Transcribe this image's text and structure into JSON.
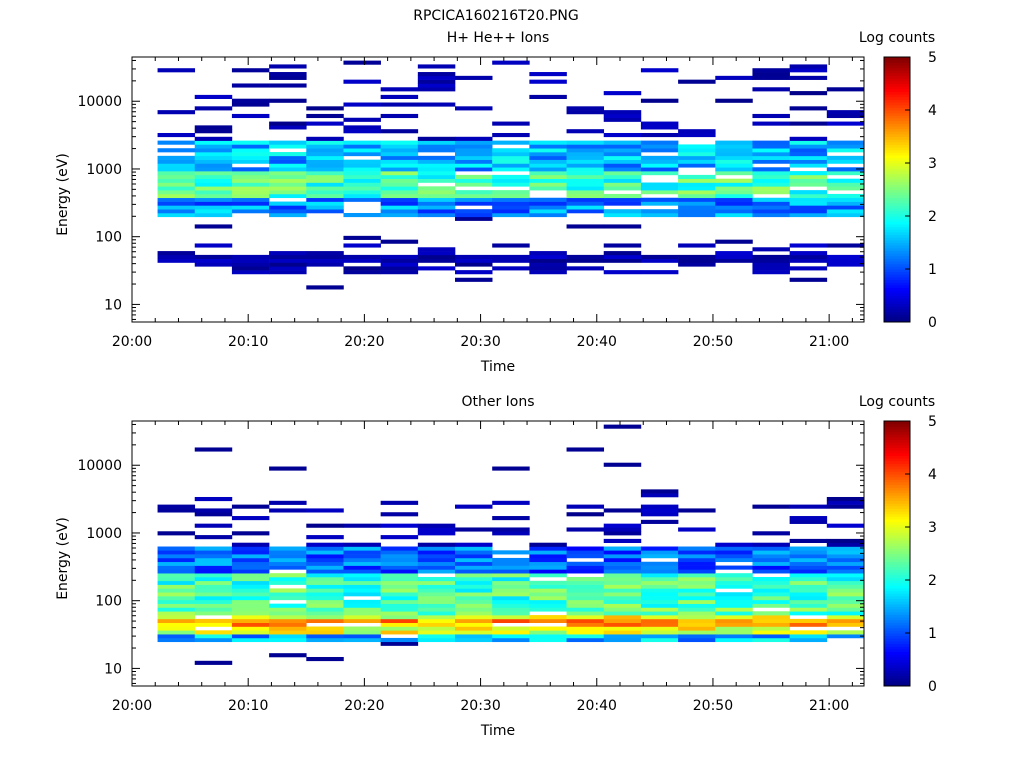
{
  "figure_title": "RPCICA160216T20.PNG",
  "colors": {
    "colormap": [
      "#00007f",
      "#0000ff",
      "#007fff",
      "#00ffff",
      "#7fff7f",
      "#ffff00",
      "#ff7f00",
      "#ff0000",
      "#7f0000"
    ]
  },
  "chart_data": [
    {
      "type": "heatmap",
      "title": "H+ He++ Ions",
      "xlabel": "Time",
      "ylabel": "Energy (eV)",
      "x_ticks": [
        "20:00",
        "20:10",
        "20:20",
        "20:30",
        "20:40",
        "20:50",
        "21:00"
      ],
      "x_range_minutes": [
        0,
        63
      ],
      "y_scale": "log",
      "y_ticks": [
        10,
        100,
        1000,
        10000
      ],
      "y_tick_labels": [
        "10",
        "100",
        "1000",
        "10000"
      ],
      "ylim": [
        5.5,
        45000
      ],
      "colorbar": {
        "label": "Log counts",
        "range": [
          0,
          5
        ],
        "ticks": [
          "0",
          "1",
          "2",
          "3",
          "4",
          "5"
        ]
      },
      "time_bins_minutes": [
        2.2,
        5.4,
        8.6,
        11.8,
        15.0,
        18.2,
        21.4,
        24.6,
        27.8,
        31.0,
        34.2,
        37.4,
        40.6,
        43.8,
        47.0,
        50.2,
        53.4,
        56.6,
        59.8,
        63.0
      ],
      "bands": [
        {
          "from": 30,
          "to": 42,
          "value": 0.4
        },
        {
          "from": 42,
          "to": 55,
          "value": 0.8
        },
        {
          "from": 55,
          "to": 80,
          "value": 0.2
        },
        {
          "from": 200,
          "to": 380,
          "value": 1.3
        },
        {
          "from": 380,
          "to": 900,
          "value": 2.2
        },
        {
          "from": 900,
          "to": 2500,
          "value": 1.5
        },
        {
          "from": 2500,
          "to": 9000,
          "value": 0.15
        },
        {
          "from": 9000,
          "to": 40000,
          "value": 0.1
        }
      ]
    },
    {
      "type": "heatmap",
      "title": "Other Ions",
      "xlabel": "Time",
      "ylabel": "Energy (eV)",
      "x_ticks": [
        "20:00",
        "20:10",
        "20:20",
        "20:30",
        "20:40",
        "20:50",
        "21:00"
      ],
      "x_range_minutes": [
        0,
        63
      ],
      "y_scale": "log",
      "y_ticks": [
        10,
        100,
        1000,
        10000
      ],
      "y_tick_labels": [
        "10",
        "100",
        "1000",
        "10000"
      ],
      "ylim": [
        5.5,
        45000
      ],
      "colorbar": {
        "label": "Log counts",
        "range": [
          0,
          5
        ],
        "ticks": [
          "0",
          "1",
          "2",
          "3",
          "4",
          "5"
        ]
      },
      "time_bins_minutes": [
        2.2,
        5.4,
        8.6,
        11.8,
        15.0,
        18.2,
        21.4,
        24.6,
        27.8,
        31.0,
        34.2,
        37.4,
        40.6,
        43.8,
        47.0,
        50.2,
        53.4,
        56.6,
        59.8,
        63.0
      ],
      "bands": [
        {
          "from": 25,
          "to": 33,
          "value": 1.5
        },
        {
          "from": 33,
          "to": 40,
          "value": 3.0
        },
        {
          "from": 40,
          "to": 52,
          "value": 3.6
        },
        {
          "from": 52,
          "to": 60,
          "value": 3.0
        },
        {
          "from": 60,
          "to": 90,
          "value": 2.3
        },
        {
          "from": 90,
          "to": 250,
          "value": 2.2
        },
        {
          "from": 250,
          "to": 600,
          "value": 1.1
        },
        {
          "from": 600,
          "to": 4000,
          "value": 0.15
        }
      ]
    }
  ]
}
